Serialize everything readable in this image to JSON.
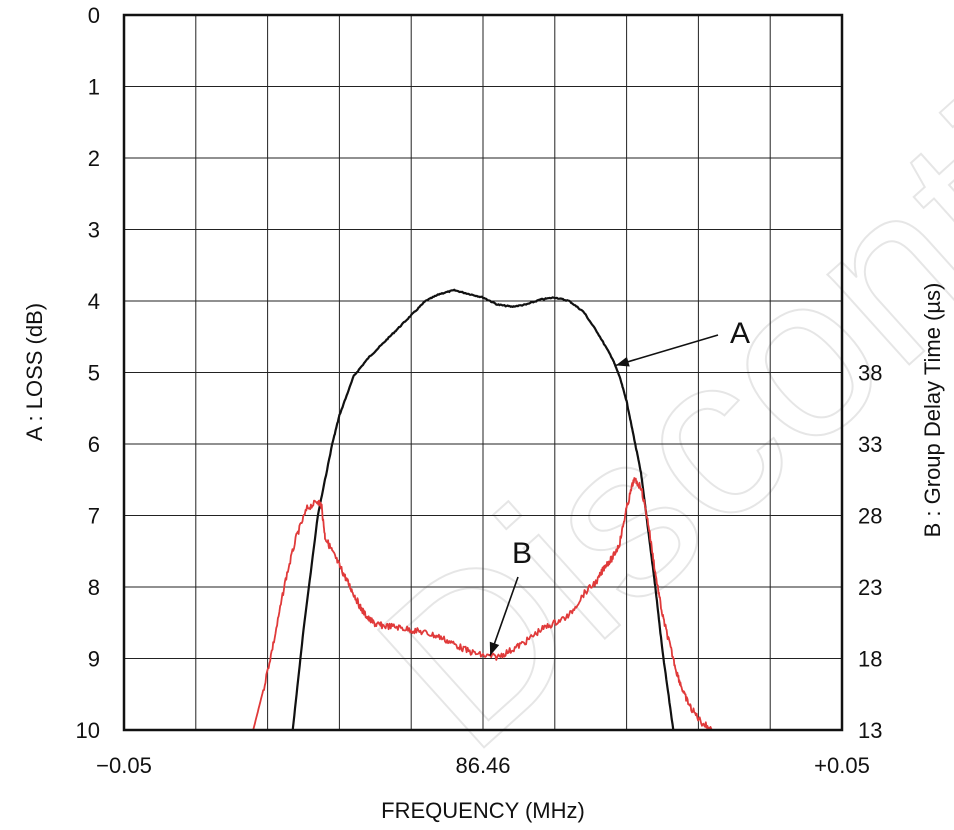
{
  "watermark": "Discontinued product",
  "chart_data": {
    "type": "line",
    "xlabel": "FREQUENCY (MHz)",
    "ylabel_left": "A : LOSS (dB)",
    "ylabel_right": "B : Group Delay Time (µs)",
    "x_tick_labels": [
      "−0.05",
      "86.46",
      "+0.05"
    ],
    "x_range": [
      -0.05,
      0.05
    ],
    "x_unit_note": "offset from 86.46 MHz",
    "ylim_left": [
      0,
      10
    ],
    "left_inverted": true,
    "left_ticks": [
      "0",
      "1",
      "2",
      "3",
      "4",
      "5",
      "6",
      "7",
      "8",
      "9",
      "10"
    ],
    "ylim_right": [
      13,
      38
    ],
    "right_ticks": [
      "38",
      "33",
      "28",
      "23",
      "18",
      "13"
    ],
    "grid": true,
    "grid_divisions_x": 10,
    "series": [
      {
        "name": "A",
        "axis": "left",
        "color": "#111111",
        "x": [
          -0.0265,
          -0.025,
          -0.023,
          -0.021,
          -0.02,
          -0.018,
          -0.016,
          -0.014,
          -0.012,
          -0.01,
          -0.008,
          -0.006,
          -0.004,
          -0.002,
          0.0,
          0.002,
          0.004,
          0.006,
          0.008,
          0.01,
          0.012,
          0.014,
          0.016,
          0.018,
          0.019,
          0.02,
          0.021,
          0.022,
          0.023,
          0.024,
          0.025,
          0.0265
        ],
        "y": [
          10.0,
          8.6,
          7.0,
          6.0,
          5.6,
          5.05,
          4.8,
          4.6,
          4.4,
          4.2,
          4.0,
          3.9,
          3.85,
          3.9,
          3.95,
          4.05,
          4.08,
          4.05,
          3.98,
          3.95,
          4.0,
          4.15,
          4.45,
          4.8,
          5.05,
          5.4,
          5.9,
          6.4,
          7.2,
          8.0,
          8.9,
          10.0
        ]
      },
      {
        "name": "B",
        "axis": "right",
        "color": "#e03a3a",
        "x": [
          -0.032,
          -0.0305,
          -0.029,
          -0.0275,
          -0.026,
          -0.0245,
          -0.023,
          -0.0225,
          -0.022,
          -0.021,
          -0.02,
          -0.019,
          -0.018,
          -0.017,
          -0.016,
          -0.015,
          -0.014,
          -0.012,
          -0.01,
          -0.008,
          -0.006,
          -0.004,
          -0.002,
          0.0,
          0.002,
          0.004,
          0.006,
          0.008,
          0.01,
          0.012,
          0.014,
          0.016,
          0.017,
          0.018,
          0.019,
          0.02,
          0.021,
          0.022,
          0.023,
          0.024,
          0.025,
          0.026,
          0.027,
          0.028,
          0.029,
          0.0305,
          0.032
        ],
        "y": [
          13.0,
          16.0,
          19.5,
          23.5,
          26.5,
          28.5,
          29.0,
          28.7,
          26.5,
          25.5,
          24.5,
          23.5,
          22.5,
          21.5,
          20.8,
          20.4,
          20.3,
          20.2,
          20.0,
          19.8,
          19.5,
          19.0,
          18.5,
          18.2,
          18.1,
          18.6,
          19.2,
          20.0,
          20.5,
          21.0,
          22.5,
          23.5,
          24.5,
          25.0,
          26.0,
          28.5,
          30.5,
          30.0,
          27.5,
          24.0,
          21.0,
          19.0,
          17.0,
          15.5,
          14.5,
          13.5,
          13.0
        ]
      }
    ],
    "annotations": [
      {
        "text": "A",
        "target_series": "A",
        "arrow_to": [
          0.0185,
          4.9
        ]
      },
      {
        "text": "B",
        "target_series": "B",
        "arrow_to": [
          0.001,
          18.2
        ]
      }
    ]
  }
}
